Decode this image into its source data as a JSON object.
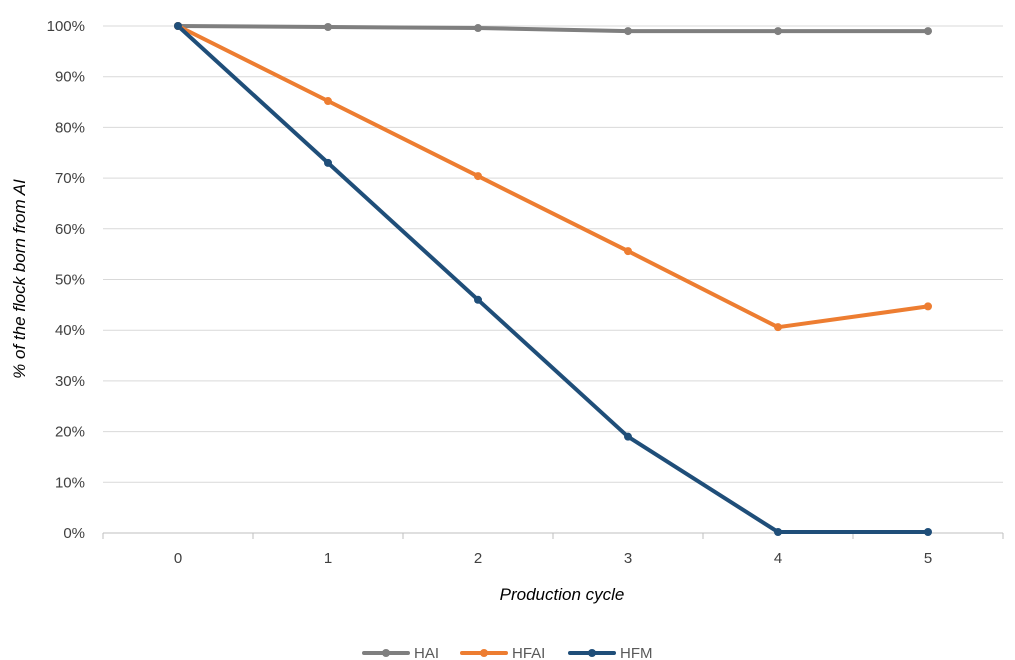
{
  "chart_data": {
    "type": "line",
    "title": "",
    "xlabel": "Production cycle",
    "ylabel": "% of the flock born from AI",
    "x": [
      0,
      1,
      2,
      3,
      4,
      5
    ],
    "x_tick_labels": [
      "0",
      "1",
      "2",
      "3",
      "4",
      "5"
    ],
    "ylim": [
      0,
      100
    ],
    "y_ticks": [
      0,
      10,
      20,
      30,
      40,
      50,
      60,
      70,
      80,
      90,
      100
    ],
    "y_tick_labels": [
      "0%",
      "10%",
      "20%",
      "30%",
      "40%",
      "50%",
      "60%",
      "70%",
      "80%",
      "90%",
      "100%"
    ],
    "grid": "horizontal",
    "legend_position": "bottom",
    "series": [
      {
        "name": "HAI",
        "color": "#7f7f7f",
        "values": [
          100,
          99.8,
          99.6,
          99.0,
          99.0,
          99.0
        ]
      },
      {
        "name": "HFAI",
        "color": "#ed7d31",
        "values": [
          100,
          85.2,
          70.4,
          55.6,
          40.6,
          44.7
        ]
      },
      {
        "name": "HFM",
        "color": "#1f4e79",
        "values": [
          100,
          73.0,
          46.0,
          19.0,
          0.2,
          0.2
        ]
      }
    ]
  }
}
